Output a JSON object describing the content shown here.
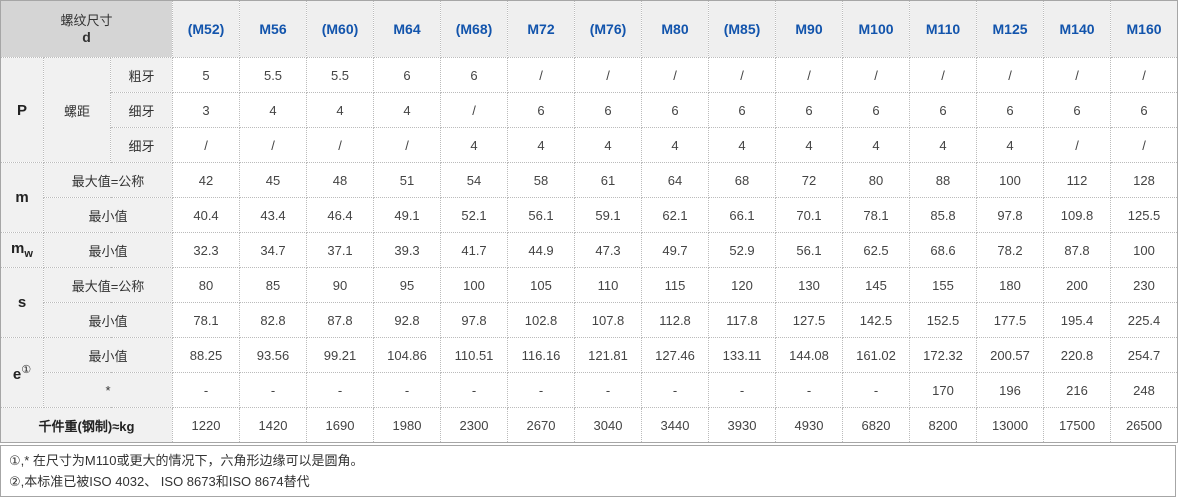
{
  "table": {
    "corner": {
      "line1": "螺纹尺寸",
      "line2": "d"
    },
    "columns": [
      "(M52)",
      "M56",
      "(M60)",
      "M64",
      "(M68)",
      "M72",
      "(M76)",
      "M80",
      "(M85)",
      "M90",
      "M100",
      "M110",
      "M125",
      "M140",
      "M160"
    ],
    "row_groups": [
      {
        "label": "P",
        "mid_label": "螺距",
        "rows": [
          {
            "sub": "粗牙",
            "values": [
              "5",
              "5.5",
              "5.5",
              "6",
              "6",
              "/",
              "/",
              "/",
              "/",
              "/",
              "/",
              "/",
              "/",
              "/",
              "/"
            ]
          },
          {
            "sub": "细牙",
            "values": [
              "3",
              "4",
              "4",
              "4",
              "/",
              "6",
              "6",
              "6",
              "6",
              "6",
              "6",
              "6",
              "6",
              "6",
              "6"
            ]
          },
          {
            "sub": "细牙",
            "values": [
              "/",
              "/",
              "/",
              "/",
              "4",
              "4",
              "4",
              "4",
              "4",
              "4",
              "4",
              "4",
              "4",
              "/",
              "/"
            ]
          }
        ]
      },
      {
        "label": "m",
        "rows": [
          {
            "sub": "最大值=公称",
            "values": [
              "42",
              "45",
              "48",
              "51",
              "54",
              "58",
              "61",
              "64",
              "68",
              "72",
              "80",
              "88",
              "100",
              "112",
              "128"
            ]
          },
          {
            "sub": "最小值",
            "values": [
              "40.4",
              "43.4",
              "46.4",
              "49.1",
              "52.1",
              "56.1",
              "59.1",
              "62.1",
              "66.1",
              "70.1",
              "78.1",
              "85.8",
              "97.8",
              "109.8",
              "125.5"
            ]
          }
        ]
      },
      {
        "label": "m",
        "label_sub": "w",
        "rows": [
          {
            "sub": "最小值",
            "values": [
              "32.3",
              "34.7",
              "37.1",
              "39.3",
              "41.7",
              "44.9",
              "47.3",
              "49.7",
              "52.9",
              "56.1",
              "62.5",
              "68.6",
              "78.2",
              "87.8",
              "100"
            ]
          }
        ]
      },
      {
        "label": "s",
        "rows": [
          {
            "sub": "最大值=公称",
            "values": [
              "80",
              "85",
              "90",
              "95",
              "100",
              "105",
              "110",
              "115",
              "120",
              "130",
              "145",
              "155",
              "180",
              "200",
              "230"
            ]
          },
          {
            "sub": "最小值",
            "values": [
              "78.1",
              "82.8",
              "87.8",
              "92.8",
              "97.8",
              "102.8",
              "107.8",
              "112.8",
              "117.8",
              "127.5",
              "142.5",
              "152.5",
              "177.5",
              "195.4",
              "225.4"
            ]
          }
        ]
      },
      {
        "label": "e",
        "label_sup": "①",
        "rows": [
          {
            "sub": "最小值",
            "values": [
              "88.25",
              "93.56",
              "99.21",
              "104.86",
              "110.51",
              "116.16",
              "121.81",
              "127.46",
              "133.11",
              "144.08",
              "161.02",
              "172.32",
              "200.57",
              "220.8",
              "254.7"
            ]
          },
          {
            "sub": "*",
            "values": [
              "-",
              "-",
              "-",
              "-",
              "-",
              "-",
              "-",
              "-",
              "-",
              "-",
              "-",
              "170",
              "196",
              "216",
              "248"
            ]
          }
        ]
      },
      {
        "full_label": "千件重(钢制)≈kg",
        "rows": [
          {
            "values": [
              "1220",
              "1420",
              "1690",
              "1980",
              "2300",
              "2670",
              "3040",
              "3440",
              "3930",
              "4930",
              "6820",
              "8200",
              "13000",
              "17500",
              "26500"
            ]
          }
        ]
      }
    ]
  },
  "notes": [
    "①,* 在尺寸为M110或更大的情况下，六角形边缘可以是圆角。",
    "②,本标准已被ISO 4032、 ISO 8673和ISO 8674替代"
  ],
  "colors": {
    "header_text": "#1254ac",
    "corner_bg": "#d5d5d5",
    "colhead_bg": "#efefef",
    "label_bg": "#f1f1f1",
    "border_outer": "#a6a6a6",
    "border_inner": "#bbbbbb"
  }
}
